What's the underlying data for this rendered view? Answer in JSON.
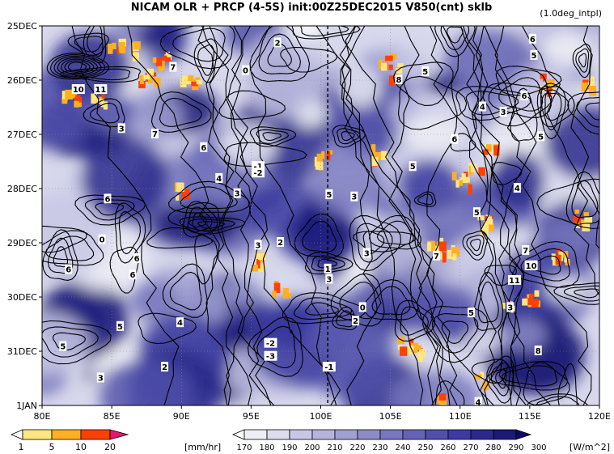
{
  "title": "NICAM  OLR + PRCP (4-5S) init:00Z25DEC2015 V850(cnt) sklb",
  "note": "(1.0deg_intpl)",
  "chart_data": {
    "type": "heatmap",
    "x_ticks": [
      "80E",
      "85E",
      "90E",
      "95E",
      "100E",
      "105E",
      "110E",
      "115E",
      "120E"
    ],
    "x_values": [
      80,
      85,
      90,
      95,
      100,
      105,
      110,
      115,
      120
    ],
    "xlim": [
      80,
      120
    ],
    "y_ticks": [
      "25DEC",
      "26DEC",
      "27DEC",
      "28DEC",
      "29DEC",
      "30DEC",
      "31DEC",
      "1JAN"
    ],
    "y_values": [
      0,
      1,
      2,
      3,
      4,
      5,
      6,
      7
    ],
    "ylim": [
      0,
      7
    ],
    "y_direction": "time increases downward",
    "grid": true,
    "reference_line_x": 100.5,
    "precip_colorbar": {
      "unit": "[mm/hr]",
      "levels": [
        "1",
        "5",
        "10",
        "20"
      ],
      "colors": [
        "#ffffff",
        "#ffe680",
        "#ffb020",
        "#ff4000",
        "#e8146e"
      ]
    },
    "olr_colorbar": {
      "unit": "[W/m^2]",
      "levels": [
        "170",
        "180",
        "190",
        "200",
        "210",
        "220",
        "230",
        "240",
        "250",
        "260",
        "270",
        "280",
        "290",
        "300"
      ],
      "colors": [
        "#ffffff",
        "#eeeef6",
        "#dcdcee",
        "#c8c8e6",
        "#b4b4dc",
        "#a0a0d2",
        "#8c8cc8",
        "#7878be",
        "#6464b4",
        "#5050aa",
        "#3c3ca0",
        "#2a2a8c",
        "#1a1a78",
        "#0a0a64"
      ]
    },
    "contour_labels": [
      {
        "text": "2",
        "x": 96.9,
        "y": 0.32
      },
      {
        "text": "0",
        "x": 94.6,
        "y": 0.83
      },
      {
        "text": "7",
        "x": 89.4,
        "y": 0.77
      },
      {
        "text": "10",
        "x": 82.6,
        "y": 1.18
      },
      {
        "text": "11",
        "x": 84.2,
        "y": 1.18
      },
      {
        "text": "3",
        "x": 85.7,
        "y": 1.9
      },
      {
        "text": "7",
        "x": 88.1,
        "y": 2.0
      },
      {
        "text": "6",
        "x": 91.6,
        "y": 2.25
      },
      {
        "text": "4",
        "x": 92.7,
        "y": 2.82
      },
      {
        "text": "-1",
        "x": 95.5,
        "y": 2.6
      },
      {
        "text": "-2",
        "x": 95.5,
        "y": 2.72
      },
      {
        "text": "3",
        "x": 94.0,
        "y": 3.1
      },
      {
        "text": "5",
        "x": 100.6,
        "y": 3.12
      },
      {
        "text": "3",
        "x": 102.4,
        "y": 3.16
      },
      {
        "text": "6",
        "x": 84.7,
        "y": 3.2
      },
      {
        "text": "0",
        "x": 84.3,
        "y": 3.95
      },
      {
        "text": "3",
        "x": 95.5,
        "y": 4.05
      },
      {
        "text": "2",
        "x": 97.1,
        "y": 4.0
      },
      {
        "text": "6",
        "x": 81.9,
        "y": 4.5
      },
      {
        "text": "6",
        "x": 86.5,
        "y": 4.6
      },
      {
        "text": "3",
        "x": 100.6,
        "y": 4.68
      },
      {
        "text": "3",
        "x": 103.3,
        "y": 4.2
      },
      {
        "text": "1",
        "x": 100.5,
        "y": 4.49
      },
      {
        "text": "6",
        "x": 86.8,
        "y": 4.3
      },
      {
        "text": "5",
        "x": 85.6,
        "y": 5.55
      },
      {
        "text": "4",
        "x": 89.9,
        "y": 5.48
      },
      {
        "text": "5",
        "x": 81.5,
        "y": 5.92
      },
      {
        "text": "-2",
        "x": 96.4,
        "y": 5.86
      },
      {
        "text": "-3",
        "x": 96.4,
        "y": 6.1
      },
      {
        "text": "2",
        "x": 88.8,
        "y": 6.3
      },
      {
        "text": "3",
        "x": 84.2,
        "y": 6.5
      },
      {
        "text": "-1",
        "x": 100.6,
        "y": 6.3
      },
      {
        "text": "0",
        "x": 103.0,
        "y": 5.2
      },
      {
        "text": "2",
        "x": 102.5,
        "y": 5.45
      },
      {
        "text": "7",
        "x": 108.3,
        "y": 4.25
      },
      {
        "text": "10",
        "x": 115.1,
        "y": 4.43
      },
      {
        "text": "7",
        "x": 114.7,
        "y": 4.15
      },
      {
        "text": "11",
        "x": 113.9,
        "y": 4.7
      },
      {
        "text": "5",
        "x": 110.8,
        "y": 5.3
      },
      {
        "text": "3",
        "x": 113.6,
        "y": 5.2
      },
      {
        "text": "8",
        "x": 115.6,
        "y": 6.0
      },
      {
        "text": "4",
        "x": 111.3,
        "y": 6.95
      },
      {
        "text": "6",
        "x": 115.2,
        "y": 0.25
      },
      {
        "text": "5",
        "x": 115.3,
        "y": 0.55
      },
      {
        "text": "5",
        "x": 107.5,
        "y": 0.85
      },
      {
        "text": "6",
        "x": 114.6,
        "y": 1.3
      },
      {
        "text": "4",
        "x": 111.6,
        "y": 1.5
      },
      {
        "text": "3",
        "x": 113.1,
        "y": 1.6
      },
      {
        "text": "5",
        "x": 115.8,
        "y": 2.05
      },
      {
        "text": "6",
        "x": 109.6,
        "y": 2.1
      },
      {
        "text": "5",
        "x": 106.6,
        "y": 2.6
      },
      {
        "text": "4",
        "x": 114.1,
        "y": 3.0
      },
      {
        "text": "5",
        "x": 111.2,
        "y": 3.45
      },
      {
        "text": "8",
        "x": 105.6,
        "y": 1.0
      }
    ]
  }
}
